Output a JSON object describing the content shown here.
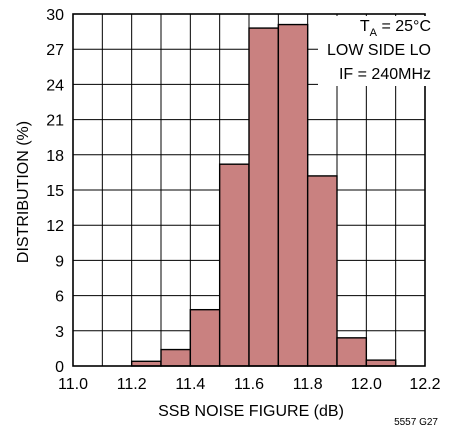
{
  "chart_data": {
    "type": "bar",
    "histogram": true,
    "xlabel": "SSB NOISE FIGURE (dB)",
    "ylabel": "DISTRIBUTION (%)",
    "xlim": [
      11.0,
      12.2
    ],
    "ylim": [
      0,
      30
    ],
    "xticks": [
      "11.0",
      "11.2",
      "11.4",
      "11.6",
      "11.8",
      "12.0",
      "12.2"
    ],
    "yticks": [
      "0",
      "3",
      "6",
      "9",
      "12",
      "15",
      "18",
      "21",
      "24",
      "27",
      "30"
    ],
    "bin_width": 0.1,
    "bins": [
      {
        "x0": 11.0,
        "value": 0
      },
      {
        "x0": 11.1,
        "value": 0
      },
      {
        "x0": 11.2,
        "value": 0.4
      },
      {
        "x0": 11.3,
        "value": 1.4
      },
      {
        "x0": 11.4,
        "value": 4.8
      },
      {
        "x0": 11.5,
        "value": 17.2
      },
      {
        "x0": 11.6,
        "value": 28.8
      },
      {
        "x0": 11.7,
        "value": 29.1
      },
      {
        "x0": 11.8,
        "value": 16.2
      },
      {
        "x0": 11.9,
        "value": 2.4
      },
      {
        "x0": 12.0,
        "value": 0.5
      },
      {
        "x0": 12.1,
        "value": 0
      }
    ],
    "bar_color": "#c98180",
    "annotations": {
      "ta_prefix": "T",
      "ta_sub": "A",
      "ta_suffix": " = 25°C",
      "line2": "LOW SIDE LO",
      "line3": "IF = 240MHz"
    },
    "grid": true,
    "figure_id": "5557 G27"
  }
}
